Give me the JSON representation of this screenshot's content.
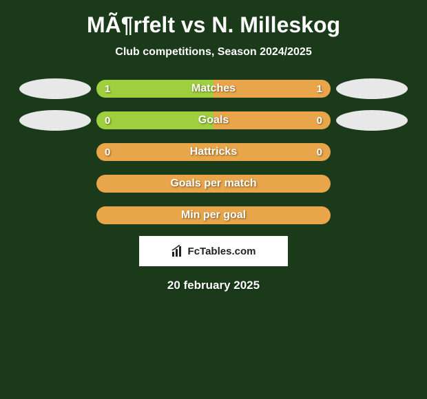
{
  "title": "MÃ¶rfelt vs N. Milleskog",
  "subtitle": "Club competitions, Season 2024/2025",
  "colors": {
    "left": "#9fcf3f",
    "right": "#e8a54a",
    "full": "#e8a54a",
    "background": "#1a3a1a",
    "text": "#ffffff",
    "oval": "#e8e8e8"
  },
  "rows": [
    {
      "label": "Matches",
      "left_val": "1",
      "right_val": "1",
      "left_pct": 50,
      "right_pct": 50,
      "show_ovals": true,
      "type": "split"
    },
    {
      "label": "Goals",
      "left_val": "0",
      "right_val": "0",
      "left_pct": 50,
      "right_pct": 50,
      "show_ovals": true,
      "type": "split"
    },
    {
      "label": "Hattricks",
      "left_val": "0",
      "right_val": "0",
      "left_pct": 0,
      "right_pct": 0,
      "show_ovals": false,
      "type": "full"
    },
    {
      "label": "Goals per match",
      "left_val": "",
      "right_val": "",
      "left_pct": 0,
      "right_pct": 0,
      "show_ovals": false,
      "type": "full"
    },
    {
      "label": "Min per goal",
      "left_val": "",
      "right_val": "",
      "left_pct": 0,
      "right_pct": 0,
      "show_ovals": false,
      "type": "full"
    }
  ],
  "logo_text": "FcTables.com",
  "date": "20 february 2025"
}
